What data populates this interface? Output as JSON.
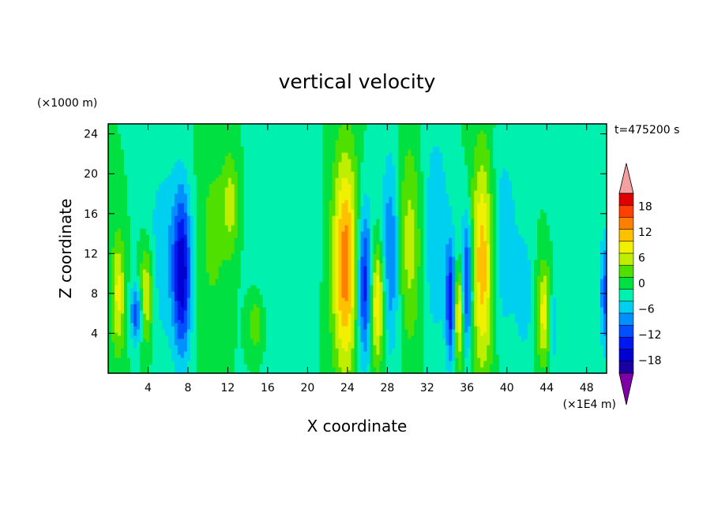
{
  "chart_data": {
    "type": "heatmap",
    "title": "vertical velocity",
    "xlabel": "X coordinate",
    "ylabel": "Z coordinate",
    "x_unit": "(×1E4 m)",
    "y_unit": "(×1000 m)",
    "time_label": "t=475200 s",
    "xlim": [
      0,
      50
    ],
    "ylim": [
      0,
      25
    ],
    "x_ticks": [
      "4",
      "8",
      "12",
      "16",
      "20",
      "24",
      "28",
      "32",
      "36",
      "40",
      "44",
      "48"
    ],
    "y_ticks": [
      "4",
      "8",
      "12",
      "16",
      "20",
      "24"
    ],
    "colorbar": {
      "levels": [
        -21,
        -18,
        -15,
        -12,
        -9,
        -6,
        -3,
        0,
        3,
        6,
        9,
        12,
        15,
        18,
        21
      ],
      "tick_labels": [
        "18",
        "12",
        "6",
        "0",
        "−6",
        "−12",
        "−18"
      ],
      "colors": [
        "#6a0dad",
        "#1a00a0",
        "#0000d0",
        "#0018f0",
        "#0050ff",
        "#0090ff",
        "#00d0f0",
        "#00f0b0",
        "#00e040",
        "#50e000",
        "#c0ee00",
        "#f0f000",
        "#ffc000",
        "#ff8000",
        "#ff4000",
        "#e00000"
      ],
      "extend_low_color": "#8000a8",
      "extend_high_color": "#f4a0a0"
    },
    "features": [
      {
        "x": 1.0,
        "z": 8,
        "w": 0.7,
        "h": 6,
        "v": 10
      },
      {
        "x": 2.8,
        "z": 6,
        "w": 0.6,
        "h": 3,
        "v": -11
      },
      {
        "x": 3.8,
        "z": 8,
        "w": 0.7,
        "h": 5,
        "v": 11
      },
      {
        "x": 5.6,
        "z": 12,
        "w": 2.0,
        "h": 10,
        "v": -5
      },
      {
        "x": 7.4,
        "z": 10,
        "w": 0.9,
        "h": 8,
        "v": -16
      },
      {
        "x": 10.5,
        "z": 14,
        "w": 1.5,
        "h": 10,
        "v": 4
      },
      {
        "x": 12.3,
        "z": 17,
        "w": 0.8,
        "h": 5,
        "v": 7
      },
      {
        "x": 14.8,
        "z": 5,
        "w": 0.8,
        "h": 3,
        "v": 6
      },
      {
        "x": 17.5,
        "z": 14,
        "w": 3.0,
        "h": 12,
        "v": -3
      },
      {
        "x": 23.8,
        "z": 11,
        "w": 1.3,
        "h": 11,
        "v": 17
      },
      {
        "x": 25.7,
        "z": 9,
        "w": 0.8,
        "h": 8,
        "v": -15
      },
      {
        "x": 27.0,
        "z": 7,
        "w": 0.7,
        "h": 6,
        "v": 14
      },
      {
        "x": 28.4,
        "z": 12,
        "w": 1.0,
        "h": 10,
        "v": -10
      },
      {
        "x": 30.2,
        "z": 13,
        "w": 1.4,
        "h": 10,
        "v": 8
      },
      {
        "x": 32.8,
        "z": 14,
        "w": 1.5,
        "h": 11,
        "v": -6
      },
      {
        "x": 34.4,
        "z": 7,
        "w": 0.5,
        "h": 6,
        "v": -14
      },
      {
        "x": 35.2,
        "z": 6,
        "w": 0.5,
        "h": 5,
        "v": 14
      },
      {
        "x": 36.0,
        "z": 9,
        "w": 0.6,
        "h": 7,
        "v": -15
      },
      {
        "x": 37.6,
        "z": 11,
        "w": 1.2,
        "h": 11,
        "v": 15
      },
      {
        "x": 39.5,
        "z": 13,
        "w": 1.6,
        "h": 10,
        "v": -6
      },
      {
        "x": 41.8,
        "z": 8,
        "w": 0.9,
        "h": 6,
        "v": -5
      },
      {
        "x": 43.8,
        "z": 6,
        "w": 0.8,
        "h": 5,
        "v": 11
      },
      {
        "x": 44.6,
        "z": 5,
        "w": 0.5,
        "h": 4,
        "v": -8
      },
      {
        "x": 46.5,
        "z": 14,
        "w": 1.6,
        "h": 10,
        "v": -3
      },
      {
        "x": 49.8,
        "z": 8,
        "w": 0.4,
        "h": 6,
        "v": -10
      }
    ]
  }
}
